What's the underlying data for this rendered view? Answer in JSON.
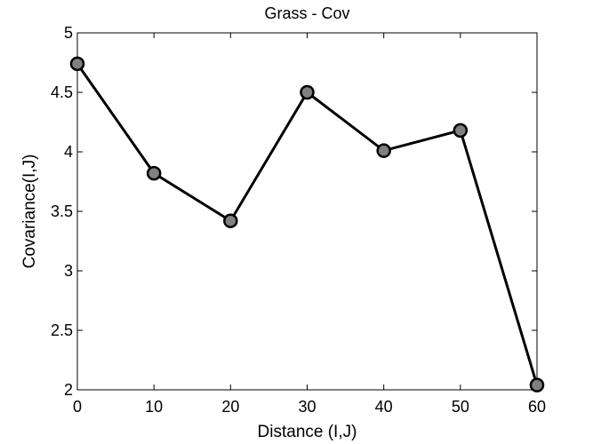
{
  "chart_data": {
    "type": "line",
    "title": "Grass - Cov",
    "xlabel": "Distance (I,J)",
    "ylabel": "Covariance(I,J)",
    "xlim": [
      0,
      60
    ],
    "ylim": [
      2,
      5
    ],
    "xticks": [
      "0",
      "10",
      "20",
      "30",
      "40",
      "50",
      "60"
    ],
    "yticks": [
      "2",
      "2.5",
      "3",
      "3.5",
      "4",
      "4.5",
      "5"
    ],
    "grid": false,
    "series": [
      {
        "x": [
          0,
          10,
          20,
          30,
          40,
          50,
          60
        ],
        "values": [
          4.74,
          3.82,
          3.42,
          4.5,
          4.01,
          4.18,
          2.04
        ]
      }
    ],
    "colors": {
      "line": "#000000",
      "marker_fill": "#808080",
      "marker_edge": "#000000"
    }
  }
}
